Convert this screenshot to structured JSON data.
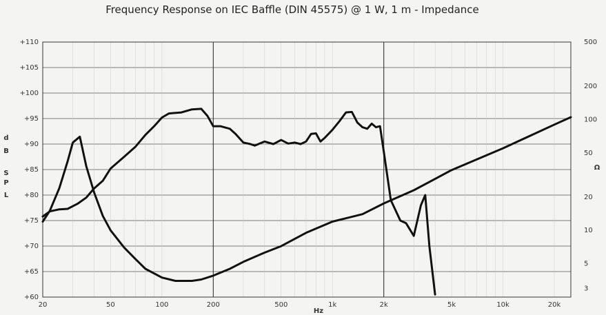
{
  "chart_data": {
    "type": "line",
    "title": "Frequency Response on IEC Baffle (DIN 45575) @ 1 W, 1 m - Impedance",
    "xlabel": "Hz",
    "ylabel_left_letters": [
      "d",
      "B",
      "S",
      "P",
      "L"
    ],
    "ylabel_right": "Ω",
    "x_scale": "log",
    "xlim": [
      20,
      25000
    ],
    "ylim_left": [
      60,
      110
    ],
    "ylim_right": [
      2.5,
      500
    ],
    "y_right_scale": "log",
    "grid": true,
    "x_ticks": [
      {
        "value": 20,
        "label": "20"
      },
      {
        "value": 50,
        "label": "50"
      },
      {
        "value": 100,
        "label": "100"
      },
      {
        "value": 200,
        "label": "200"
      },
      {
        "value": 500,
        "label": "500"
      },
      {
        "value": 1000,
        "label": "1k"
      },
      {
        "value": 2000,
        "label": "2k"
      },
      {
        "value": 5000,
        "label": "5k"
      },
      {
        "value": 10000,
        "label": "10k"
      },
      {
        "value": 20000,
        "label": "20k"
      }
    ],
    "x_major_lines": [
      200,
      2000
    ],
    "y_left_ticks": [
      {
        "value": 110,
        "label": "+110"
      },
      {
        "value": 105,
        "label": "+105"
      },
      {
        "value": 100,
        "label": "+100"
      },
      {
        "value": 95,
        "label": "+95"
      },
      {
        "value": 90,
        "label": "+90"
      },
      {
        "value": 85,
        "label": "+85"
      },
      {
        "value": 80,
        "label": "+80"
      },
      {
        "value": 75,
        "label": "+75"
      },
      {
        "value": 70,
        "label": "+70"
      },
      {
        "value": 65,
        "label": "+65"
      },
      {
        "value": 60,
        "label": "+60"
      }
    ],
    "y_right_ticks": [
      {
        "value": 500,
        "label": "500"
      },
      {
        "value": 200,
        "label": "200"
      },
      {
        "value": 100,
        "label": "100"
      },
      {
        "value": 50,
        "label": "50"
      },
      {
        "value": 20,
        "label": "20"
      },
      {
        "value": 10,
        "label": "10"
      },
      {
        "value": 5,
        "label": "5"
      },
      {
        "value": 3,
        "label": "3"
      }
    ],
    "series": [
      {
        "axis": "left",
        "x": [
          20,
          22,
          25,
          28,
          32,
          36,
          40,
          45,
          50,
          60,
          70,
          80,
          90,
          100,
          110,
          130,
          150,
          170,
          185,
          200,
          220,
          250,
          270,
          300,
          330,
          350,
          400,
          450,
          500,
          550,
          600,
          650,
          700,
          750,
          800,
          850,
          900,
          1000,
          1100,
          1200,
          1300,
          1400,
          1500,
          1600,
          1700,
          1800,
          1900,
          2000,
          2200,
          2500,
          2700,
          3000,
          3300,
          3500,
          3700,
          4000
        ],
        "y": [
          75.8,
          76.8,
          77.2,
          77.3,
          78.3,
          79.5,
          81.3,
          82.8,
          85.2,
          87.5,
          89.5,
          91.8,
          93.5,
          95.2,
          96.0,
          96.2,
          96.8,
          96.9,
          95.5,
          93.5,
          93.5,
          93.0,
          92.0,
          90.3,
          90.0,
          89.7,
          90.5,
          90.0,
          90.8,
          90.1,
          90.3,
          90.0,
          90.5,
          92.0,
          92.1,
          90.5,
          91.2,
          92.8,
          94.5,
          96.2,
          96.3,
          94.2,
          93.3,
          93.0,
          94.0,
          93.3,
          93.5,
          88.5,
          79.0,
          75.0,
          74.5,
          72.0,
          78.0,
          80.0,
          70.0,
          60.5
        ]
      },
      {
        "axis": "right",
        "x": [
          20,
          22,
          25,
          28,
          30,
          33,
          36,
          40,
          45,
          50,
          60,
          70,
          80,
          100,
          120,
          150,
          170,
          200,
          250,
          300,
          400,
          500,
          700,
          1000,
          1500,
          2000,
          3000,
          5000,
          10000,
          20000,
          25000
        ],
        "y": [
          12,
          15,
          24,
          42,
          62,
          70,
          38,
          22,
          13.5,
          10,
          7,
          5.5,
          4.5,
          3.75,
          3.5,
          3.5,
          3.6,
          3.9,
          4.5,
          5.2,
          6.3,
          7.2,
          9.5,
          12,
          14,
          17.5,
          23,
          35,
          55,
          90,
          105
        ]
      }
    ]
  }
}
